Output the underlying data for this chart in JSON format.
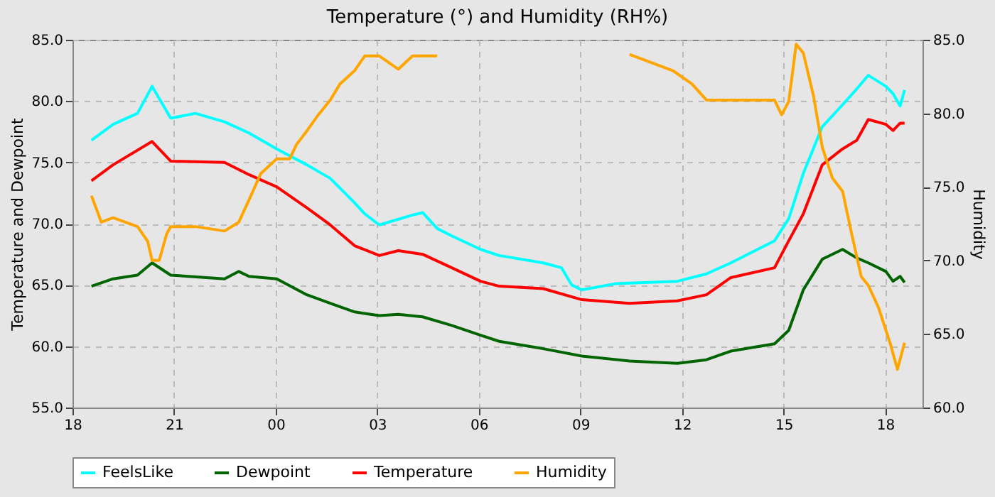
{
  "chart_data": {
    "type": "line",
    "title": "Temperature (°) and Humidity (RH%)",
    "ylabel": "Temperature and Dewpoint",
    "y2label": "Humidity",
    "xlim": [
      18,
      43.1
    ],
    "xticks": [
      {
        "value": 18,
        "label": "18"
      },
      {
        "value": 21,
        "label": "21"
      },
      {
        "value": 24,
        "label": "00"
      },
      {
        "value": 27,
        "label": "03"
      },
      {
        "value": 30,
        "label": "06"
      },
      {
        "value": 33,
        "label": "09"
      },
      {
        "value": 36,
        "label": "12"
      },
      {
        "value": 39,
        "label": "15"
      },
      {
        "value": 42,
        "label": "18"
      }
    ],
    "ylim": [
      55,
      85
    ],
    "yticks": [
      {
        "value": 55,
        "label": "55.0"
      },
      {
        "value": 60,
        "label": "60.0"
      },
      {
        "value": 65,
        "label": "65.0"
      },
      {
        "value": 70,
        "label": "70.0"
      },
      {
        "value": 75,
        "label": "75.0"
      },
      {
        "value": 80,
        "label": "80.0"
      },
      {
        "value": 85,
        "label": "85.0"
      }
    ],
    "y2lim": [
      60,
      85
    ],
    "y2ticks": [
      {
        "value": 60,
        "label": "60.0"
      },
      {
        "value": 65,
        "label": "65.0"
      },
      {
        "value": 70,
        "label": "70.0"
      },
      {
        "value": 75,
        "label": "75.0"
      },
      {
        "value": 80,
        "label": "80.0"
      },
      {
        "value": 85,
        "label": "85.0"
      }
    ],
    "grid": true,
    "legend": "bottom",
    "series": [
      {
        "name": "FeelsLike",
        "color": "#00ffff",
        "x": [
          18.56,
          19.2,
          19.92,
          20.35,
          20.9,
          21.63,
          22.49,
          23.21,
          24.03,
          24.92,
          25.61,
          26.33,
          26.63,
          27.06,
          28.04,
          28.34,
          28.77,
          29.2,
          30.05,
          30.6,
          31.9,
          32.44,
          32.74,
          33.04,
          34.03,
          35.86,
          36.72,
          37.44,
          38.3,
          38.73,
          39.15,
          39.58,
          40.14,
          40.74,
          41.16,
          41.5,
          42.02,
          42.23,
          42.44,
          42.57
        ],
        "values": [
          76.8,
          78.1,
          79.0,
          81.2,
          78.6,
          79.0,
          78.3,
          77.4,
          76.1,
          74.8,
          73.7,
          71.7,
          70.8,
          69.9,
          70.7,
          70.9,
          69.6,
          69.0,
          67.9,
          67.4,
          66.8,
          66.4,
          65.0,
          64.6,
          65.1,
          65.3,
          65.9,
          66.8,
          68.0,
          68.6,
          70.4,
          74.1,
          77.9,
          79.7,
          81.0,
          82.1,
          81.2,
          80.6,
          79.6,
          80.9
        ]
      },
      {
        "name": "Dewpoint",
        "color": "#006400",
        "x": [
          18.56,
          19.2,
          19.92,
          20.35,
          20.9,
          22.49,
          22.91,
          23.21,
          24.03,
          24.92,
          25.61,
          26.33,
          27.06,
          27.62,
          28.34,
          29.2,
          30.05,
          30.6,
          31.9,
          33.04,
          34.45,
          35.86,
          36.72,
          37.44,
          38.73,
          39.15,
          39.58,
          40.14,
          40.74,
          41.16,
          41.5,
          42.02,
          42.23,
          42.44,
          42.57
        ],
        "values": [
          64.9,
          65.5,
          65.8,
          66.8,
          65.8,
          65.5,
          66.1,
          65.7,
          65.5,
          64.2,
          63.5,
          62.8,
          62.5,
          62.6,
          62.4,
          61.7,
          60.9,
          60.4,
          59.8,
          59.2,
          58.8,
          58.6,
          58.9,
          59.6,
          60.2,
          61.3,
          64.6,
          67.1,
          67.9,
          67.2,
          66.8,
          66.1,
          65.3,
          65.7,
          65.2
        ]
      },
      {
        "name": "Temperature",
        "color": "#ff0000",
        "x": [
          18.56,
          19.2,
          20.35,
          20.9,
          22.49,
          23.21,
          24.03,
          24.92,
          25.61,
          26.33,
          27.06,
          27.62,
          28.34,
          29.2,
          30.05,
          30.6,
          31.9,
          33.04,
          34.45,
          35.86,
          36.72,
          37.44,
          38.73,
          39.15,
          39.58,
          40.14,
          40.74,
          41.16,
          41.5,
          42.02,
          42.23,
          42.44,
          42.57
        ],
        "values": [
          73.5,
          74.8,
          76.7,
          75.1,
          75.0,
          74.0,
          73.0,
          71.3,
          69.9,
          68.2,
          67.4,
          67.8,
          67.5,
          66.4,
          65.3,
          64.9,
          64.7,
          63.8,
          63.5,
          63.7,
          64.2,
          65.6,
          66.4,
          68.6,
          70.8,
          74.8,
          76.1,
          76.8,
          78.5,
          78.1,
          77.6,
          78.2,
          78.2
        ]
      },
      {
        "name": "Humidity",
        "color": "#ffa500",
        "axis": "y2",
        "x": [
          18.56,
          18.85,
          19.2,
          19.92,
          20.22,
          20.35,
          20.56,
          20.78,
          20.9,
          21.63,
          22.49,
          22.91,
          23.21,
          23.56,
          24.03,
          24.41,
          24.62,
          24.92,
          25.26,
          25.61,
          25.9,
          26.33,
          26.63,
          27.06,
          27.62,
          28.04,
          28.77,
          28.81,
          34.45,
          35.73,
          36.29,
          36.72,
          38.73,
          38.94,
          39.15,
          39.37,
          39.58,
          39.88,
          40.14,
          40.44,
          40.74,
          40.99,
          41.29,
          41.5,
          41.8,
          42.14,
          42.36,
          42.57
        ],
        "values": [
          74.4,
          72.6,
          72.9,
          72.3,
          71.3,
          70.0,
          70.0,
          71.8,
          72.3,
          72.3,
          72.0,
          72.6,
          74.1,
          75.9,
          76.9,
          76.9,
          77.9,
          78.8,
          79.9,
          80.9,
          82.0,
          82.9,
          83.9,
          83.9,
          83.0,
          83.9,
          83.9,
          null,
          84.0,
          82.9,
          82.0,
          80.9,
          80.9,
          79.9,
          80.8,
          84.7,
          84.1,
          81.2,
          77.7,
          75.6,
          74.7,
          72.0,
          68.9,
          68.3,
          66.8,
          64.4,
          62.6,
          64.4
        ]
      }
    ]
  }
}
